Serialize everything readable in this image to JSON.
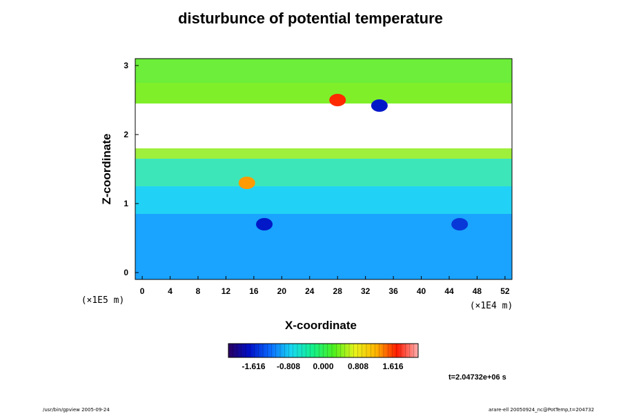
{
  "chart_data": {
    "type": "heatmap",
    "title": "disturbunce of potential temperature",
    "xlabel": "X-coordinate",
    "ylabel": "Z-coordinate",
    "x_unit": "(×1E4 m)",
    "y_unit": "(×1E5 m)",
    "x_ticks": [
      "0",
      "4",
      "8",
      "12",
      "16",
      "20",
      "24",
      "28",
      "32",
      "36",
      "40",
      "44",
      "48",
      "52"
    ],
    "y_ticks": [
      "0",
      "1",
      "2",
      "3"
    ],
    "xlim": [
      -1,
      53
    ],
    "ylim": [
      -0.1,
      3.1
    ],
    "colorbar": {
      "ticks": [
        "-1.616",
        "-0.808",
        "0.000",
        "0.808",
        "1.616"
      ],
      "range": [
        -2.2,
        2.2
      ],
      "colormap": [
        "#2b0060",
        "#0010c8",
        "#0a6cff",
        "#19d8f0",
        "#13f08a",
        "#4df01e",
        "#e8f21a",
        "#ffb400",
        "#ff1a00",
        "#ffb0b0"
      ]
    },
    "bands": [
      {
        "z_from": -0.1,
        "z_to": 0.85,
        "level": "-0.6",
        "color": "#1aa3ff"
      },
      {
        "z_from": 0.85,
        "z_to": 1.25,
        "level": "-0.2",
        "color": "#21d2f6"
      },
      {
        "z_from": 1.25,
        "z_to": 1.65,
        "level": "0.2",
        "color": "#3de6b8"
      },
      {
        "z_from": 1.65,
        "z_to": 1.8,
        "level": "0.6",
        "color": "#9ef03c"
      },
      {
        "z_from": 1.8,
        "z_to": 2.45,
        "level": "out of range",
        "color": "#ffffff"
      },
      {
        "z_from": 2.45,
        "z_to": 2.75,
        "level": "0.6",
        "color": "#7fef2a"
      },
      {
        "z_from": 2.75,
        "z_to": 3.1,
        "level": "0.4",
        "color": "#6cee3a"
      }
    ],
    "features": [
      {
        "x": 17.5,
        "z": 0.7,
        "level": "-1.6",
        "color": "#0018c8"
      },
      {
        "x": 45.5,
        "z": 0.7,
        "level": "-1.4",
        "color": "#0838d8"
      },
      {
        "x": 15,
        "z": 1.3,
        "level": "1.2",
        "color": "#ff9a00"
      },
      {
        "x": 34,
        "z": 2.42,
        "level": "-1.6",
        "color": "#0018c8"
      },
      {
        "x": 28,
        "z": 2.5,
        "level": "1.6",
        "color": "#ff2a00"
      }
    ]
  },
  "time_label": "t=2.04732e+06 s",
  "footer_left": "/usr/bin/gpview 2005-09-24",
  "footer_right": "arare-ell 20050924_nc@PotTemp,t=204732"
}
